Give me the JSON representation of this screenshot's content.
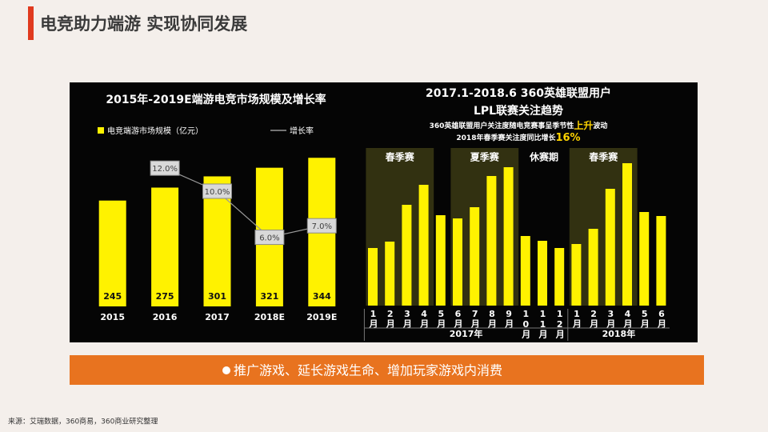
{
  "header": {
    "title": "电竞助力端游  实现协同发展"
  },
  "chart_data": [
    {
      "type": "bar",
      "title": "2015年-2019E端游电竞市场规模及增长率",
      "categories": [
        "2015",
        "2016",
        "2017",
        "2018E",
        "2019E"
      ],
      "series": [
        {
          "name": "电竞端游市场规模（亿元）",
          "type": "bar",
          "color": "#fff200",
          "values": [
            245,
            275,
            301,
            321,
            344
          ]
        },
        {
          "name": "增长率",
          "type": "line",
          "axis": "y2",
          "color": "#9a9a9a",
          "values": [
            null,
            12.0,
            10.0,
            6.0,
            7.0
          ],
          "value_labels": [
            null,
            "12.0%",
            "10.0%",
            "6.0%",
            "7.0%"
          ]
        }
      ],
      "ylim": [
        0,
        400
      ],
      "y2lim": [
        0,
        15
      ]
    },
    {
      "type": "bar",
      "title": [
        "2017.1-2018.6 360英雄联盟用户",
        "LPL联赛关注趋势"
      ],
      "annotations": [
        [
          "360英雄联盟用户关注度随电竞赛事呈季节性",
          "上升",
          "波动"
        ],
        [
          "2018年春季赛关注度同比增长",
          "16%"
        ]
      ],
      "categories": [
        "1月",
        "2月",
        "3月",
        "4月",
        "5月",
        "6月",
        "7月",
        "8月",
        "9月",
        "10月",
        "11月",
        "12月",
        "1月",
        "2月",
        "3月",
        "4月",
        "5月",
        "6月"
      ],
      "values": [
        72,
        80,
        126,
        151,
        113,
        109,
        123,
        162,
        173,
        87,
        81,
        72,
        77,
        96,
        146,
        178,
        117,
        112
      ],
      "color": "#fff200",
      "ylim": [
        0,
        200
      ],
      "periods": [
        "春季赛",
        "夏季赛",
        "休赛期",
        "春季赛"
      ],
      "years": [
        "2017年",
        "2018年"
      ]
    }
  ],
  "banner": "推广游戏、延长游戏生命、增加玩家游戏内消费",
  "source": "来源：艾瑞数据，360商易，360商业研究整理"
}
